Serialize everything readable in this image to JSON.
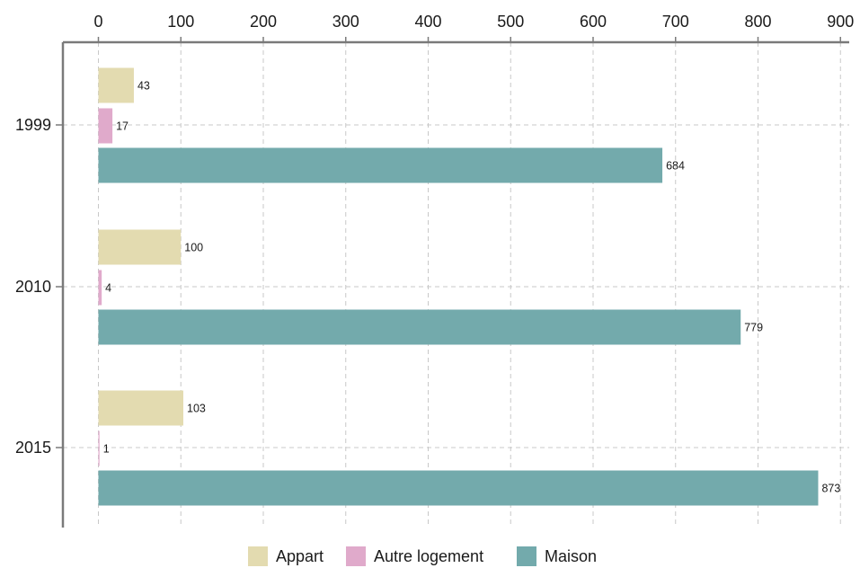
{
  "chart_data": {
    "type": "bar",
    "orientation": "horizontal",
    "categories": [
      "1999",
      "2010",
      "2015"
    ],
    "series": [
      {
        "name": "Appart",
        "values": [
          43,
          100,
          103
        ],
        "color": "#e3dbb0"
      },
      {
        "name": "Autre logement",
        "values": [
          17,
          4,
          1
        ],
        "color": "#e0aacb"
      },
      {
        "name": "Maison",
        "values": [
          684,
          779,
          873
        ],
        "color": "#73aaac"
      }
    ],
    "x_ticks": [
      "0",
      "100",
      "200",
      "300",
      "400",
      "500",
      "600",
      "700",
      "800",
      "900"
    ],
    "xlim": [
      0,
      900
    ],
    "x_axis_position": "top",
    "grid": true,
    "legend_position": "bottom-center",
    "data_labels": true
  }
}
